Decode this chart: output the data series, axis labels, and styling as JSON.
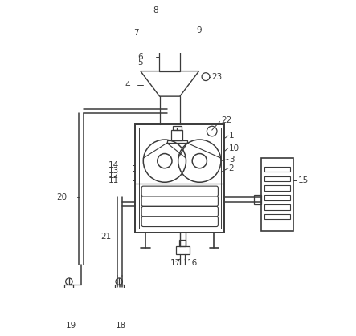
{
  "bg_color": "#ffffff",
  "line_color": "#3a3a3a",
  "line_width": 1.1,
  "label_fontsize": 7.5
}
